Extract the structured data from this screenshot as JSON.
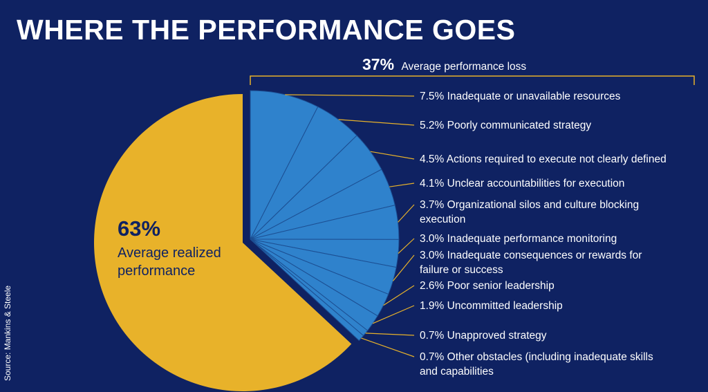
{
  "slide": {
    "title": "WHERE THE PERFORMANCE GOES",
    "source": "Source: Mankins & Steele"
  },
  "colors": {
    "background": "#0f2262",
    "realized": "#e8b22a",
    "loss": "#2f82cc",
    "loss_divider": "#1c4f93",
    "leader": "#e8b22a"
  },
  "chart_data": {
    "type": "pie",
    "title": "WHERE THE PERFORMANCE GOES",
    "loss_group": {
      "value_label": "37%",
      "label": "Average performance loss"
    },
    "realized": {
      "value": 63,
      "value_label": "63%",
      "label_lines": [
        "Average realized",
        "performance"
      ]
    },
    "slices": [
      {
        "value": 7.5,
        "value_label": "7.5%",
        "lines": [
          "Inadequate or unavailable resources"
        ]
      },
      {
        "value": 5.2,
        "value_label": "5.2%",
        "lines": [
          "Poorly communicated strategy"
        ]
      },
      {
        "value": 4.5,
        "value_label": "4.5%",
        "lines": [
          "Actions required to execute not clearly defined"
        ]
      },
      {
        "value": 4.1,
        "value_label": "4.1%",
        "lines": [
          "Unclear accountabilities for execution"
        ]
      },
      {
        "value": 3.7,
        "value_label": "3.7%",
        "lines": [
          "Organizational silos and culture blocking",
          "execution"
        ]
      },
      {
        "value": 3.0,
        "value_label": "3.0%",
        "lines": [
          "Inadequate performance monitoring"
        ]
      },
      {
        "value": 3.0,
        "value_label": "3.0%",
        "lines": [
          "Inadequate consequences or rewards for",
          "failure or success"
        ]
      },
      {
        "value": 2.6,
        "value_label": "2.6%",
        "lines": [
          "Poor senior leadership"
        ]
      },
      {
        "value": 1.9,
        "value_label": "1.9%",
        "lines": [
          "Uncommitted leadership"
        ]
      },
      {
        "value": 0.7,
        "value_label": "0.7%",
        "lines": [
          "Unapproved strategy"
        ]
      },
      {
        "value": 0.7,
        "value_label": "0.7%",
        "lines": [
          "Other obstacles (including inadequate skills",
          "and capabilities"
        ]
      }
    ]
  }
}
